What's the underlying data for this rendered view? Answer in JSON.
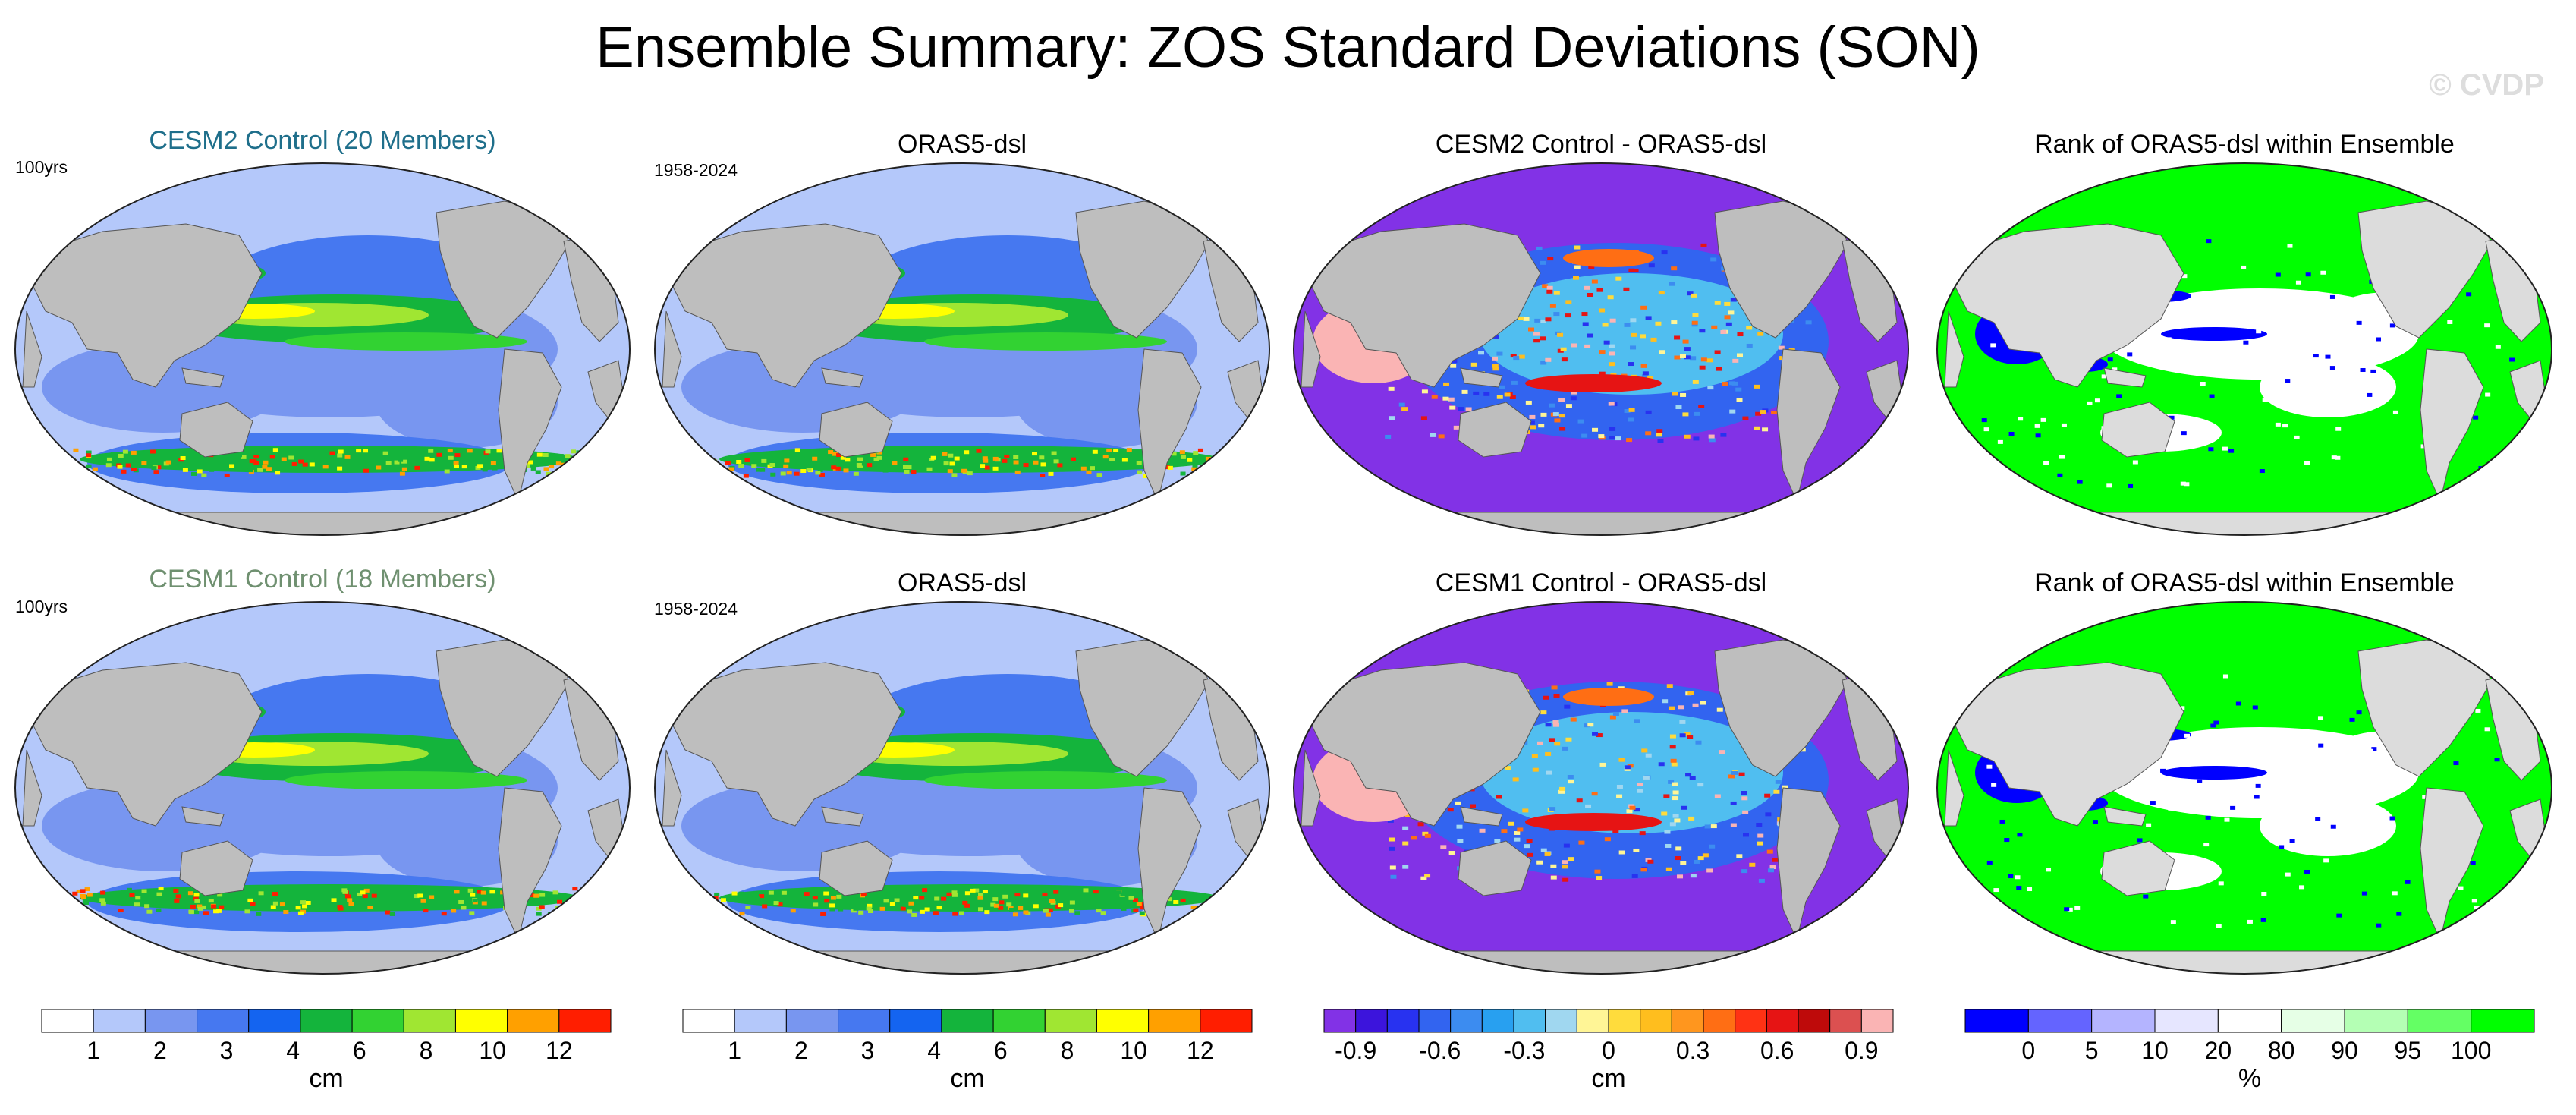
{
  "figure": {
    "title": "Ensemble Summary: ZOS Standard Deviations (SON)",
    "watermark": "© CVDP"
  },
  "panels": {
    "r0c0": {
      "title": "CESM2 Control (20 Members)",
      "corner": "100yrs",
      "title_color": "#1f6f8b"
    },
    "r0c1": {
      "title": "ORAS5-dsl",
      "corner": "1958-2024"
    },
    "r0c2": {
      "title": "CESM2 Control - ORAS5-dsl",
      "corner": ""
    },
    "r0c3": {
      "title": "Rank of ORAS5-dsl within Ensemble",
      "corner": ""
    },
    "r1c0": {
      "title": "CESM1 Control (18 Members)",
      "corner": "100yrs",
      "title_color": "#6f9070"
    },
    "r1c1": {
      "title": "ORAS5-dsl",
      "corner": "1958-2024"
    },
    "r1c2": {
      "title": "CESM1 Control - ORAS5-dsl",
      "corner": ""
    },
    "r1c3": {
      "title": "Rank of ORAS5-dsl within Ensemble",
      "corner": ""
    }
  },
  "chart_data": [
    {
      "type": "heatmap",
      "map_kind": "std",
      "panels": [
        "CESM2 Control (20 Members)",
        "ORAS5-dsl",
        "CESM1 Control (18 Members)",
        "ORAS5-dsl"
      ],
      "colorbar": {
        "label": "cm",
        "ticks": [
          "1",
          "2",
          "3",
          "4",
          "6",
          "8",
          "10",
          "12"
        ],
        "colors": [
          "#ffffff",
          "#b4c8fa",
          "#7896f0",
          "#4678f0",
          "#1464f0",
          "#14b43c",
          "#32d232",
          "#a0e632",
          "#ffff00",
          "#ffa000",
          "#ff1e00"
        ]
      }
    },
    {
      "type": "heatmap",
      "map_kind": "diff",
      "panels": [
        "CESM2 Control - ORAS5-dsl",
        "CESM1 Control - ORAS5-dsl"
      ],
      "colorbar": {
        "label": "cm",
        "ticks": [
          "-0.9",
          "-0.6",
          "-0.3",
          "0",
          "0.3",
          "0.6",
          "0.9"
        ],
        "colors": [
          "#8232e6",
          "#3c14dc",
          "#2832f0",
          "#3264f0",
          "#3c8cf0",
          "#28a0f0",
          "#50bef0",
          "#a0d7f0",
          "#fff596",
          "#ffdc3c",
          "#ffbe1e",
          "#ff961e",
          "#ff6e14",
          "#ff3214",
          "#e61414",
          "#be0a0a",
          "#dc5050",
          "#fab4b4"
        ]
      }
    },
    {
      "type": "heatmap",
      "map_kind": "rank",
      "panels": [
        "Rank of ORAS5-dsl within Ensemble",
        "Rank of ORAS5-dsl within Ensemble"
      ],
      "colorbar": {
        "label": "%",
        "ticks": [
          "0",
          "5",
          "10",
          "20",
          "80",
          "90",
          "95",
          "100"
        ],
        "colors": [
          "#0000ff",
          "#6464ff",
          "#b4b4ff",
          "#e6e6ff",
          "#ffffff",
          "#e6ffe6",
          "#b4ffb4",
          "#64ff64",
          "#00ff00"
        ]
      }
    }
  ]
}
